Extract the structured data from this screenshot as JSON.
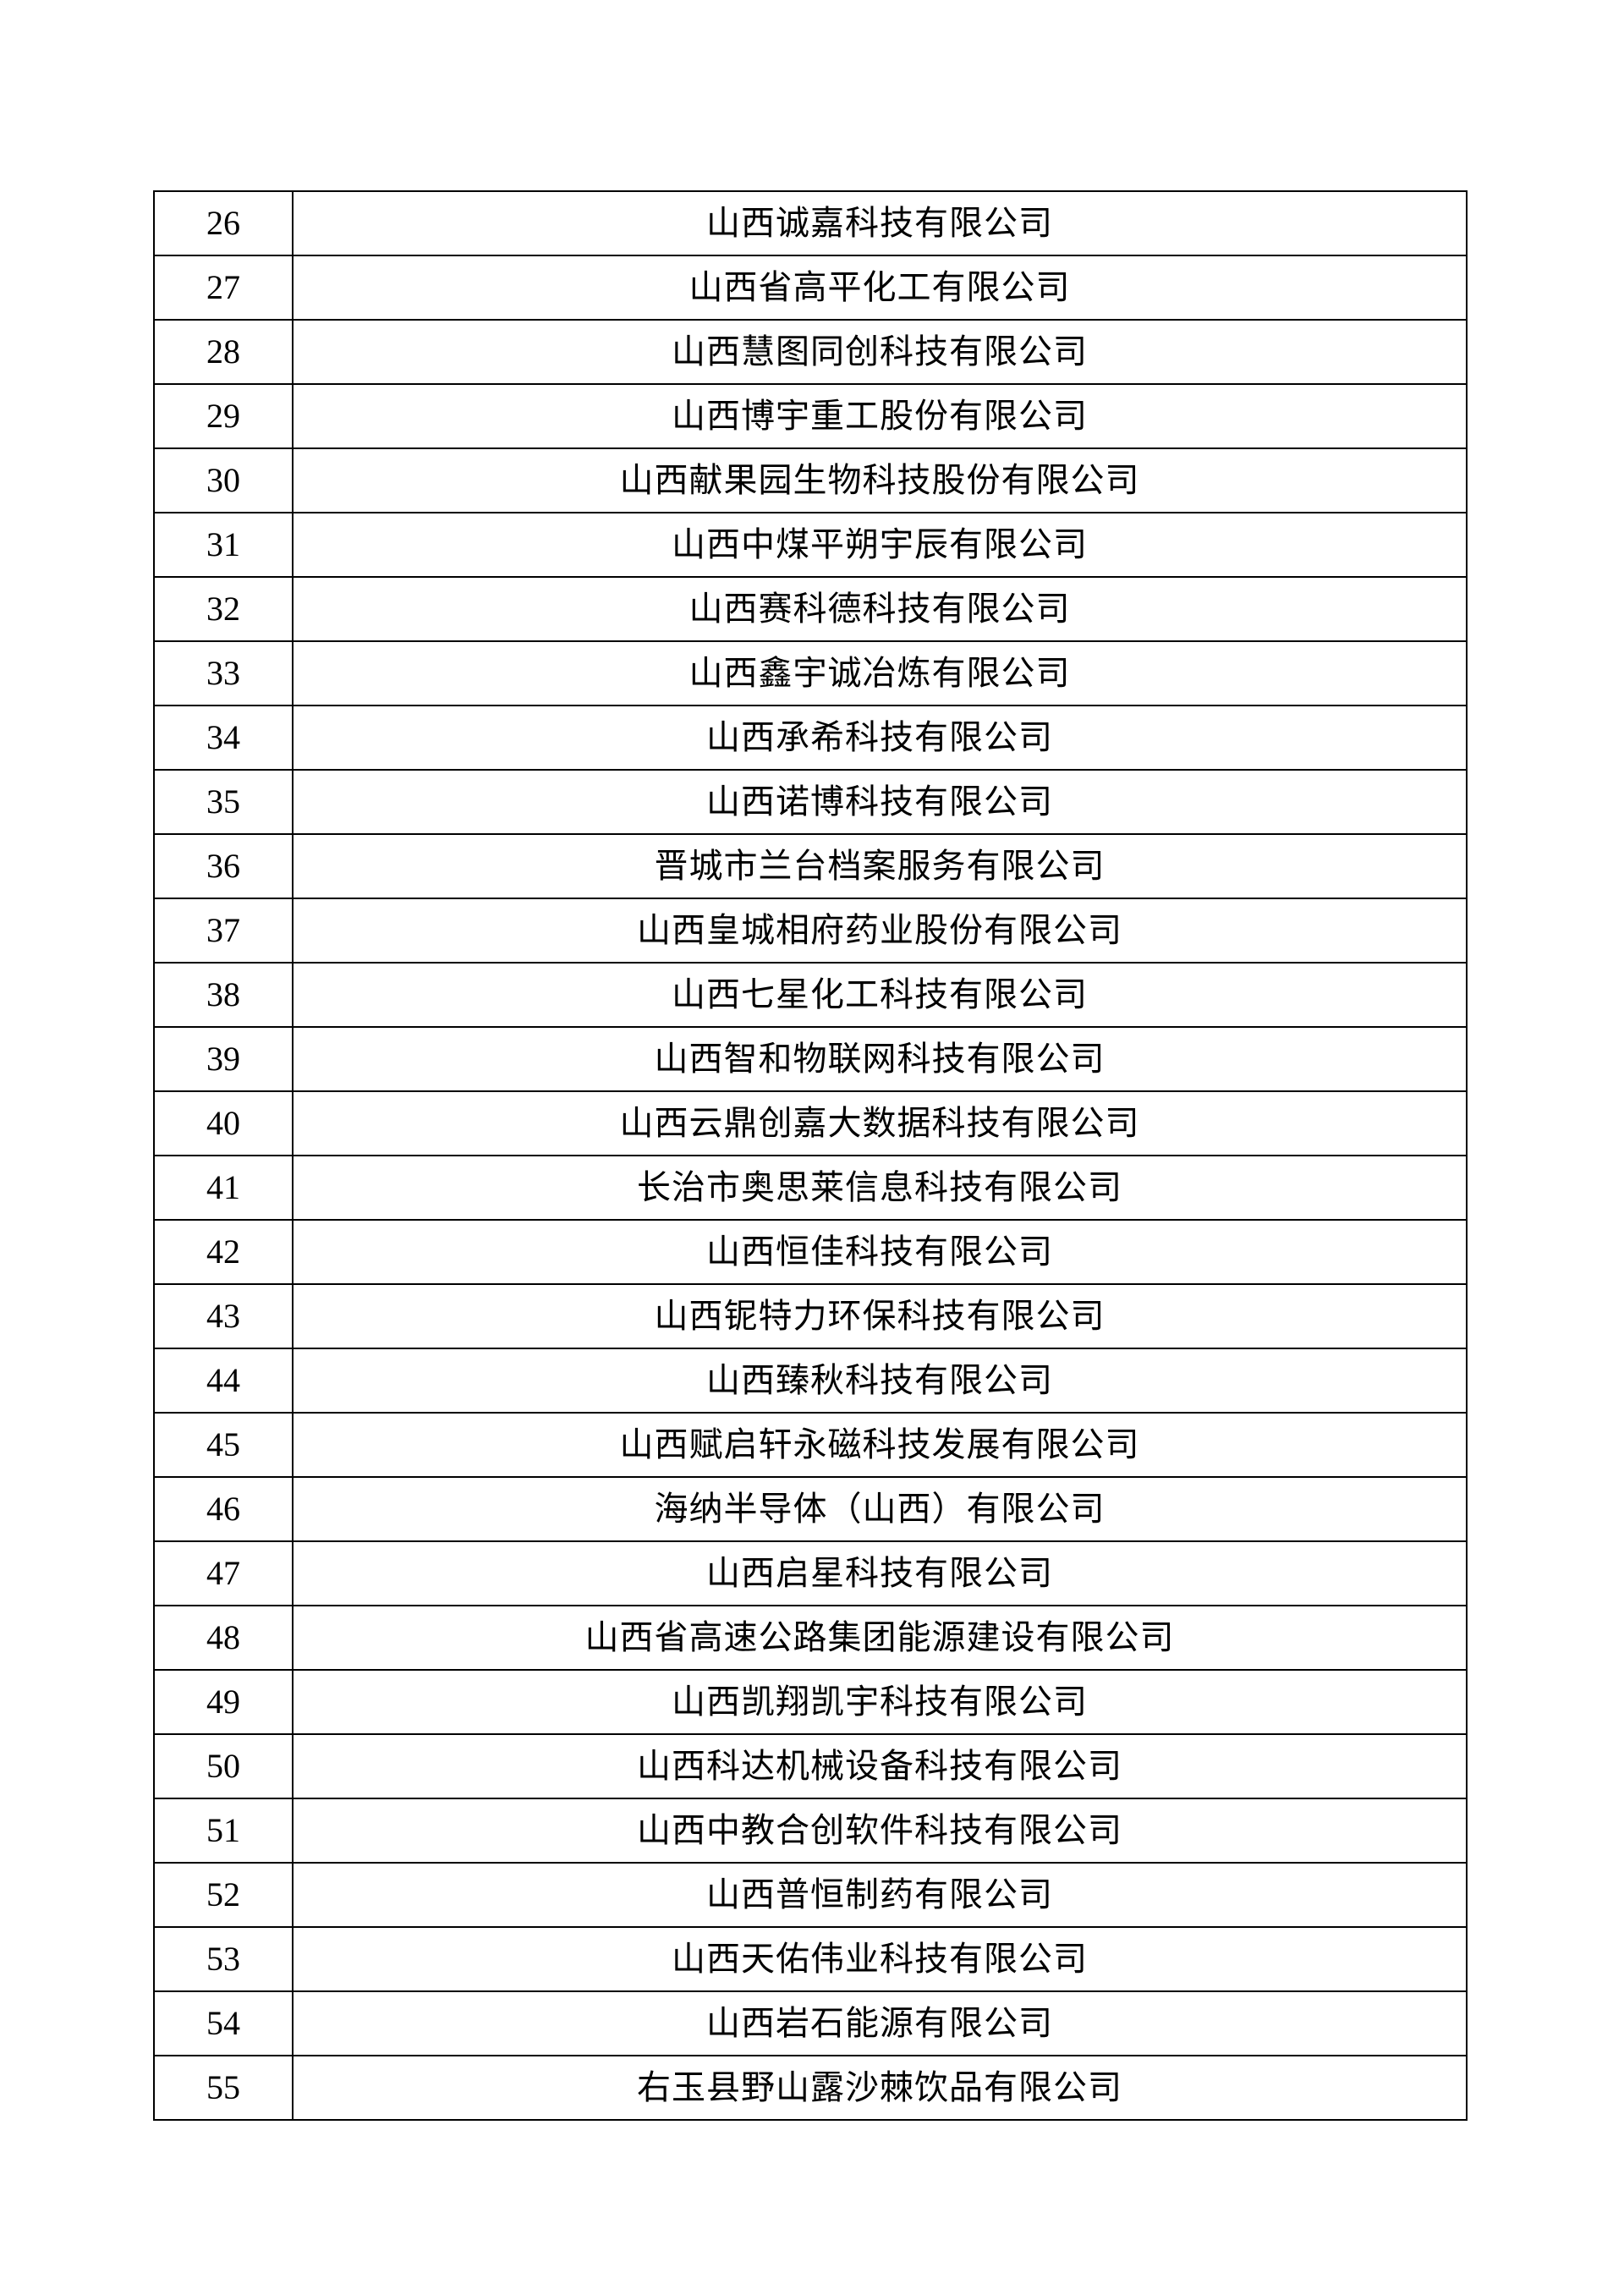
{
  "page": {
    "background_color": "#ffffff",
    "text_color": "#000000",
    "border_color": "#000000"
  },
  "table": {
    "rows": [
      {
        "no": "26",
        "name": "山西诚嘉科技有限公司"
      },
      {
        "no": "27",
        "name": "山西省高平化工有限公司"
      },
      {
        "no": "28",
        "name": "山西慧图同创科技有限公司"
      },
      {
        "no": "29",
        "name": "山西博宇重工股份有限公司"
      },
      {
        "no": "30",
        "name": "山西献果园生物科技股份有限公司"
      },
      {
        "no": "31",
        "name": "山西中煤平朔宇辰有限公司"
      },
      {
        "no": "32",
        "name": "山西赛科德科技有限公司"
      },
      {
        "no": "33",
        "name": "山西鑫宇诚冶炼有限公司"
      },
      {
        "no": "34",
        "name": "山西承希科技有限公司"
      },
      {
        "no": "35",
        "name": "山西诺博科技有限公司"
      },
      {
        "no": "36",
        "name": "晋城市兰台档案服务有限公司"
      },
      {
        "no": "37",
        "name": "山西皇城相府药业股份有限公司"
      },
      {
        "no": "38",
        "name": "山西七星化工科技有限公司"
      },
      {
        "no": "39",
        "name": "山西智和物联网科技有限公司"
      },
      {
        "no": "40",
        "name": "山西云鼎创嘉大数据科技有限公司"
      },
      {
        "no": "41",
        "name": "长治市奥思莱信息科技有限公司"
      },
      {
        "no": "42",
        "name": "山西恒佳科技有限公司"
      },
      {
        "no": "43",
        "name": "山西铌特力环保科技有限公司"
      },
      {
        "no": "44",
        "name": "山西臻秋科技有限公司"
      },
      {
        "no": "45",
        "name": "山西赋启轩永磁科技发展有限公司"
      },
      {
        "no": "46",
        "name": "海纳半导体（山西）有限公司"
      },
      {
        "no": "47",
        "name": "山西启星科技有限公司"
      },
      {
        "no": "48",
        "name": "山西省高速公路集团能源建设有限公司"
      },
      {
        "no": "49",
        "name": "山西凯翔凯宇科技有限公司"
      },
      {
        "no": "50",
        "name": "山西科达机械设备科技有限公司"
      },
      {
        "no": "51",
        "name": "山西中教合创软件科技有限公司"
      },
      {
        "no": "52",
        "name": "山西普恒制药有限公司"
      },
      {
        "no": "53",
        "name": "山西天佑伟业科技有限公司"
      },
      {
        "no": "54",
        "name": "山西岩石能源有限公司"
      },
      {
        "no": "55",
        "name": "右玉县野山露沙棘饮品有限公司"
      }
    ]
  }
}
